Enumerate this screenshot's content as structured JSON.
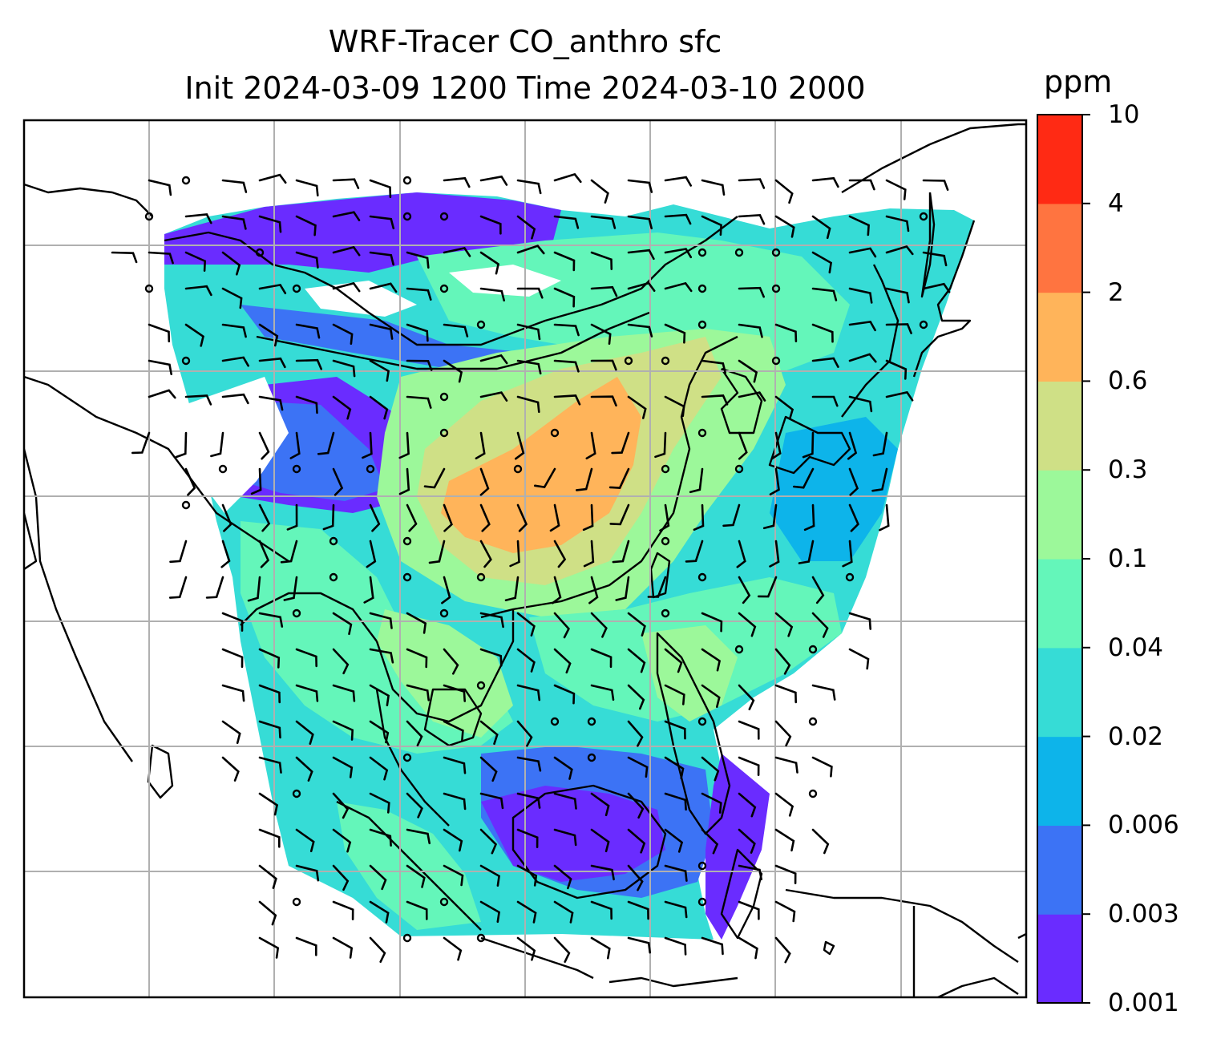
{
  "title_line1": "WRF-Tracer CO_anthro sfc",
  "title_line2": "Init 2024-03-09 1200 Time 2024-03-10 2000",
  "colorbar": {
    "unit": "ppm",
    "levels": [
      "0.001",
      "0.003",
      "0.006",
      "0.02",
      "0.04",
      "0.1",
      "0.3",
      "0.6",
      "2",
      "4",
      "10"
    ],
    "colors": [
      "#6a2cff",
      "#3c73f5",
      "#0db4ea",
      "#36dcd6",
      "#64f6ba",
      "#9cf89a",
      "#cfe086",
      "#ffb45a",
      "#ff7440",
      "#ff2a14"
    ]
  },
  "map": {
    "frame_color": "#000000",
    "grid_color": "#b0b0b0",
    "coastline_color": "#000000",
    "wind_barb_color": "#000000"
  }
}
